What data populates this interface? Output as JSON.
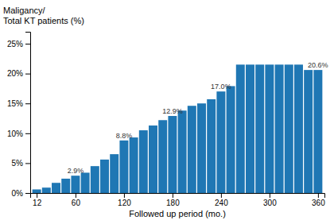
{
  "chart_data": {
    "type": "bar",
    "x": [
      12,
      24,
      36,
      48,
      60,
      72,
      84,
      96,
      108,
      120,
      132,
      144,
      156,
      168,
      180,
      192,
      204,
      216,
      228,
      240,
      252,
      264,
      276,
      288,
      300,
      312,
      324,
      336,
      348,
      360
    ],
    "values": [
      0.6,
      0.9,
      1.7,
      2.4,
      2.9,
      3.4,
      4.5,
      5.6,
      6.5,
      8.8,
      9.3,
      10.5,
      11.3,
      12.2,
      12.9,
      13.8,
      14.6,
      15.0,
      15.7,
      17.0,
      17.9,
      21.5,
      21.5,
      21.5,
      21.5,
      21.5,
      21.5,
      21.5,
      20.6,
      20.6
    ],
    "value_labels": [
      null,
      null,
      null,
      null,
      "2.9%",
      null,
      null,
      null,
      null,
      "8.8%",
      null,
      null,
      null,
      null,
      "12.9%",
      null,
      null,
      null,
      null,
      "17.0%",
      null,
      null,
      null,
      null,
      null,
      null,
      null,
      null,
      null,
      "20.6%"
    ],
    "xlabel": "Followed up period (mo.)",
    "ylabel": [
      "Maligancy/",
      "Total KT patients (%)"
    ],
    "xlim": [
      4,
      368
    ],
    "xticks": [
      12,
      60,
      120,
      180,
      240,
      300,
      360
    ],
    "ylim": [
      0,
      27
    ],
    "yticks": [
      {
        "value": 0,
        "label": "0%"
      },
      {
        "value": 5,
        "label": "5%"
      },
      {
        "value": 10,
        "label": "10%"
      },
      {
        "value": 15,
        "label": "15%"
      },
      {
        "value": 20,
        "label": "20%"
      },
      {
        "value": 25,
        "label": "25%"
      }
    ],
    "grid": false
  }
}
